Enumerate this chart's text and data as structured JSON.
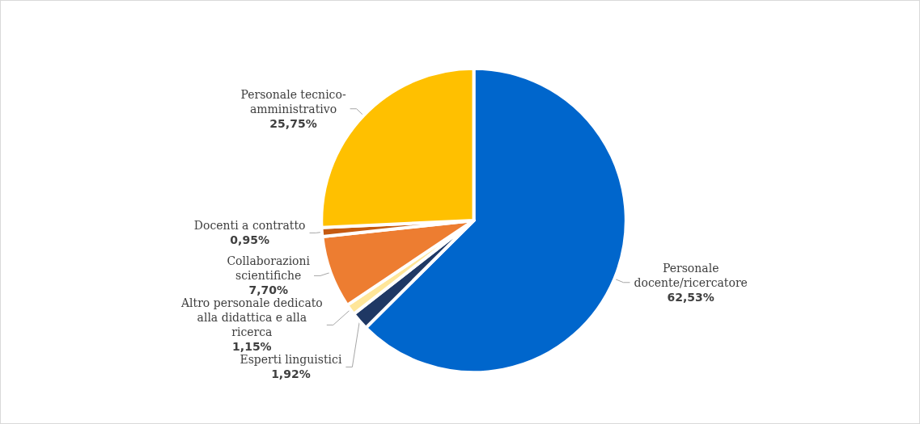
{
  "chart_data": {
    "type": "pie",
    "categories": [
      "Personale docente/ricercatore",
      "Esperti linguistici",
      "Altro personale dedicato alla didattica e alla ricerca",
      "Collaborazioni scientifiche",
      "Docenti a contratto",
      "Personale tecnico-amministrativo"
    ],
    "values": [
      62.53,
      1.92,
      1.15,
      7.7,
      0.95,
      25.75
    ],
    "value_labels": [
      "62,53%",
      "1,92%",
      "1,15%",
      "7,70%",
      "0,95%",
      "25,75%"
    ],
    "colors": [
      "#0066cc",
      "#1f3864",
      "#ffe699",
      "#ed7d31",
      "#c55a11",
      "#ffc000"
    ],
    "legend": false
  }
}
